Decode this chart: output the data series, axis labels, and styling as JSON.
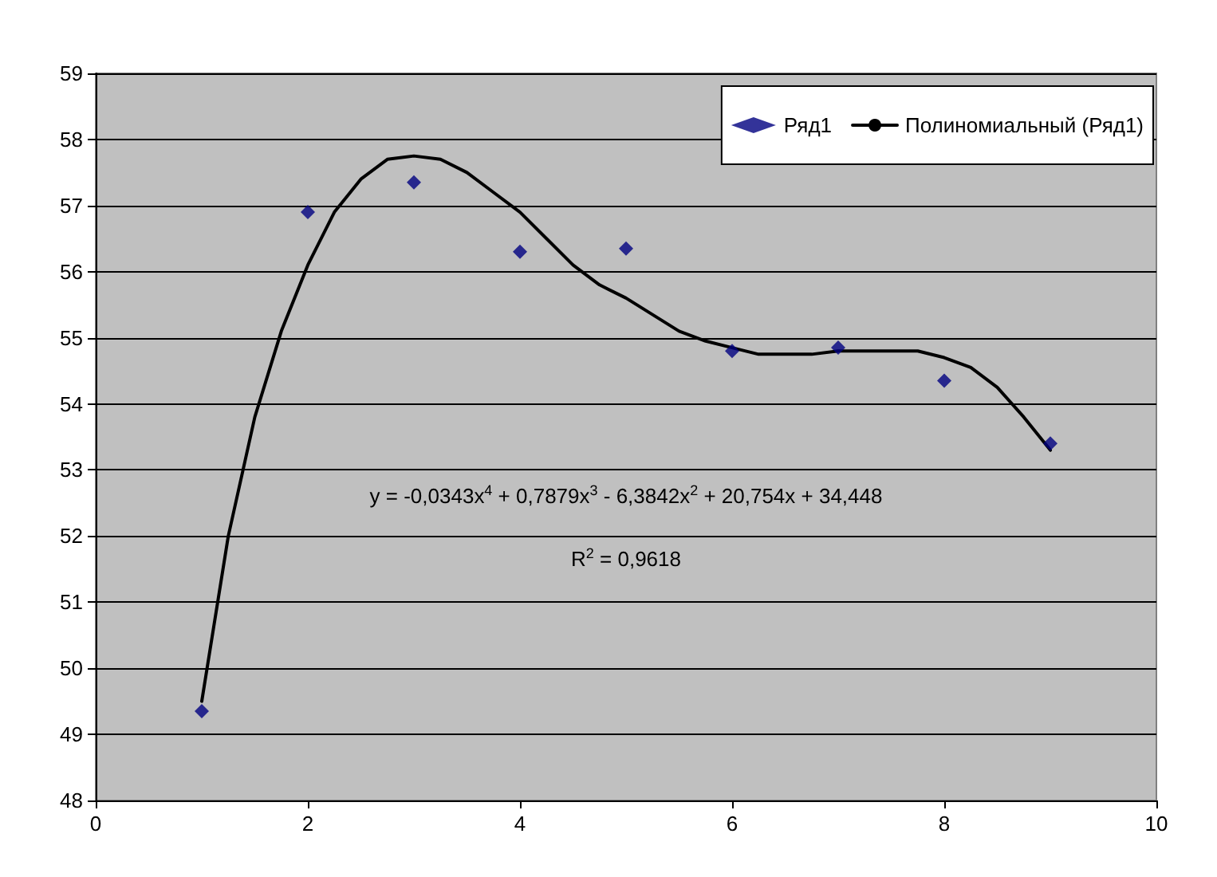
{
  "chart_data": {
    "type": "scatter",
    "series": [
      {
        "name": "Ряд1",
        "color": "#000080",
        "x": [
          1,
          2,
          3,
          4,
          5,
          6,
          7,
          8,
          9
        ],
        "values": [
          49.35,
          56.9,
          57.35,
          56.3,
          56.35,
          54.8,
          54.85,
          54.35,
          53.4
        ]
      },
      {
        "name": "Полиномиальный (Ряд1)",
        "type": "line",
        "color": "#000000",
        "marker": "none",
        "x": [
          1,
          1.25,
          1.5,
          1.75,
          2,
          2.25,
          2.5,
          2.75,
          3,
          3.25,
          3.5,
          3.75,
          4,
          4.25,
          4.5,
          4.75,
          5,
          5.25,
          5.5,
          5.75,
          6,
          6.25,
          6.5,
          6.75,
          7,
          7.25,
          7.5,
          7.75,
          8,
          8.25,
          8.5,
          8.75,
          9
        ],
        "values": [
          49.5,
          52,
          53.8,
          55.1,
          56.1,
          56.9,
          57.4,
          57.7,
          57.75,
          57.7,
          57.5,
          57.2,
          56.9,
          56.5,
          56.1,
          55.8,
          55.6,
          55.35,
          55.1,
          54.95,
          54.85,
          54.75,
          54.75,
          54.75,
          54.8,
          54.8,
          54.8,
          54.8,
          54.7,
          54.55,
          54.25,
          53.8,
          53.3
        ]
      }
    ],
    "marker": "diamond",
    "annotations": [
      "y = -0,0343x$^{4}$ + 0,7879x$^{3}$ - 6,3842x$^{2}$ + 20,754x + 34,448",
      "R$^{2}$ = 0,9618"
    ],
    "xlim": [
      0,
      10
    ],
    "xticks": [
      0,
      2,
      4,
      6,
      8,
      10
    ],
    "ylim": [
      48,
      59
    ],
    "yticks": [
      48,
      49,
      50,
      51,
      52,
      53,
      54,
      55,
      56,
      57,
      58,
      59
    ],
    "grid": "y",
    "legend": "top right"
  }
}
